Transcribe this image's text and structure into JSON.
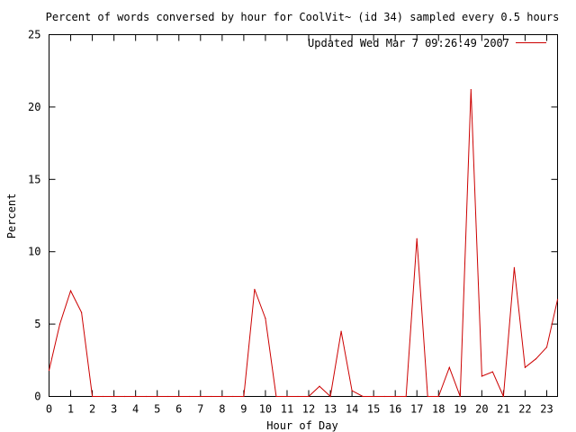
{
  "chart_data": {
    "type": "line",
    "title": "Percent of words conversed by hour for CoolVit~ (id 34) sampled every 0.5 hours",
    "xlabel": "Hour of Day",
    "ylabel": "Percent",
    "xlim": [
      0,
      23.5
    ],
    "ylim": [
      0,
      25
    ],
    "x_ticks": [
      "0",
      "1",
      "2",
      "3",
      "4",
      "5",
      "6",
      "7",
      "8",
      "9",
      "10",
      "11",
      "12",
      "13",
      "14",
      "15",
      "16",
      "17",
      "18",
      "19",
      "20",
      "21",
      "22",
      "23"
    ],
    "y_ticks": [
      "0",
      "5",
      "10",
      "15",
      "20",
      "25"
    ],
    "grid": false,
    "legend_position": "top-right",
    "series": [
      {
        "name": "Updated Wed Mar  7 09:26:49 2007",
        "color": "#cc0000",
        "x": [
          0,
          0.5,
          1,
          1.5,
          2,
          2.5,
          3,
          3.5,
          4,
          4.5,
          5,
          5.5,
          6,
          6.5,
          7,
          7.5,
          8,
          8.5,
          9,
          9.5,
          10,
          10.5,
          11,
          11.5,
          12,
          12.5,
          13,
          13.5,
          14,
          14.5,
          15,
          15.5,
          16,
          16.5,
          17,
          17.5,
          18,
          18.5,
          19,
          19.5,
          20,
          20.5,
          21,
          21.5,
          22,
          22.5,
          23,
          23.5
        ],
        "y": [
          1.8,
          5.0,
          7.3,
          5.8,
          0,
          0,
          0,
          0,
          0,
          0,
          0,
          0,
          0,
          0,
          0,
          0,
          0,
          0,
          0,
          7.4,
          5.4,
          0,
          0,
          0,
          0,
          0.7,
          0,
          4.5,
          0.4,
          0,
          0,
          0,
          0,
          0,
          10.9,
          0,
          0,
          2.0,
          0,
          21.2,
          1.4,
          1.7,
          0,
          8.9,
          2.0,
          2.6,
          3.4,
          6.7
        ]
      }
    ]
  }
}
